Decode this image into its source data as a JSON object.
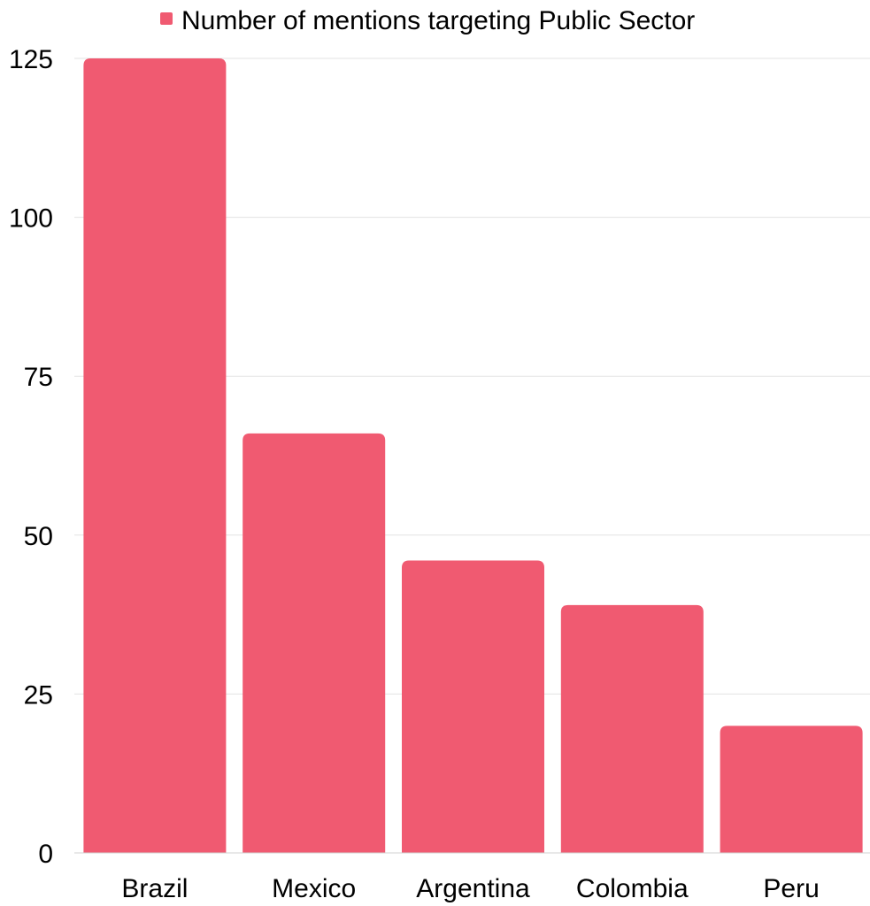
{
  "chart_data": {
    "type": "bar",
    "categories": [
      "Brazil",
      "Mexico",
      "Argentina",
      "Colombia",
      "Peru"
    ],
    "series": [
      {
        "name": "Number of mentions targeting Public Sector",
        "values": [
          125,
          66,
          46,
          39,
          20
        ]
      }
    ],
    "ylim": [
      0,
      125
    ],
    "yticks": [
      0,
      25,
      50,
      75,
      100,
      125
    ],
    "grid": true,
    "legend": "top-center",
    "bar_color": "#f05a71"
  }
}
